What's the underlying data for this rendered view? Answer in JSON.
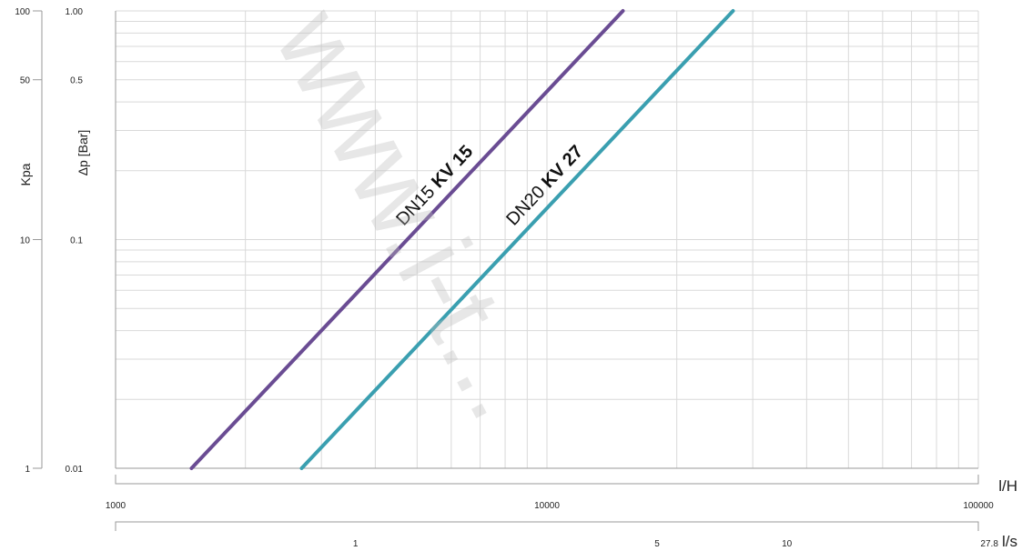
{
  "chart_data": {
    "type": "line",
    "title": "",
    "xlabel_top": "l/H",
    "xlabel_bottom": "l/s",
    "ylabel_left": "Kpa",
    "ylabel_right": "Δp [Bar]",
    "x_scale": "log",
    "y_scale": "log",
    "xlim": [
      1000,
      100000
    ],
    "ylim": [
      0.01,
      1.0
    ],
    "grid": true,
    "x_ticks_lph": [
      {
        "value": 1000,
        "label": "1000"
      },
      {
        "value": 10000,
        "label": "10000"
      },
      {
        "value": 100000,
        "label": "100000"
      }
    ],
    "x_ticks_lps": [
      {
        "value": 1,
        "label": "1"
      },
      {
        "value": 5,
        "label": "5"
      },
      {
        "value": 10,
        "label": "10"
      },
      {
        "value": 27.8,
        "label": "27.8"
      }
    ],
    "y_ticks_bar": [
      {
        "value": 1.0,
        "label": "1.00"
      },
      {
        "value": 0.5,
        "label": "0.5"
      },
      {
        "value": 0.1,
        "label": "0.1"
      },
      {
        "value": 0.01,
        "label": "0.01"
      }
    ],
    "y_ticks_kpa": [
      {
        "value": 100,
        "label": "100"
      },
      {
        "value": 50,
        "label": "50"
      },
      {
        "value": 10,
        "label": "10"
      },
      {
        "value": 1,
        "label": "1"
      }
    ],
    "series": [
      {
        "label_plain": "DN15 ",
        "label_bold": "KV 15",
        "color": "#6a4c93",
        "points": [
          {
            "x": 1500,
            "y": 0.01
          },
          {
            "x": 15000,
            "y": 1.0
          }
        ]
      },
      {
        "label_plain": "DN20 ",
        "label_bold": "KV 27",
        "color": "#3a9fb0",
        "points": [
          {
            "x": 2700,
            "y": 0.01
          },
          {
            "x": 27000,
            "y": 1.0
          }
        ]
      }
    ]
  },
  "watermark": "www.i-t..."
}
